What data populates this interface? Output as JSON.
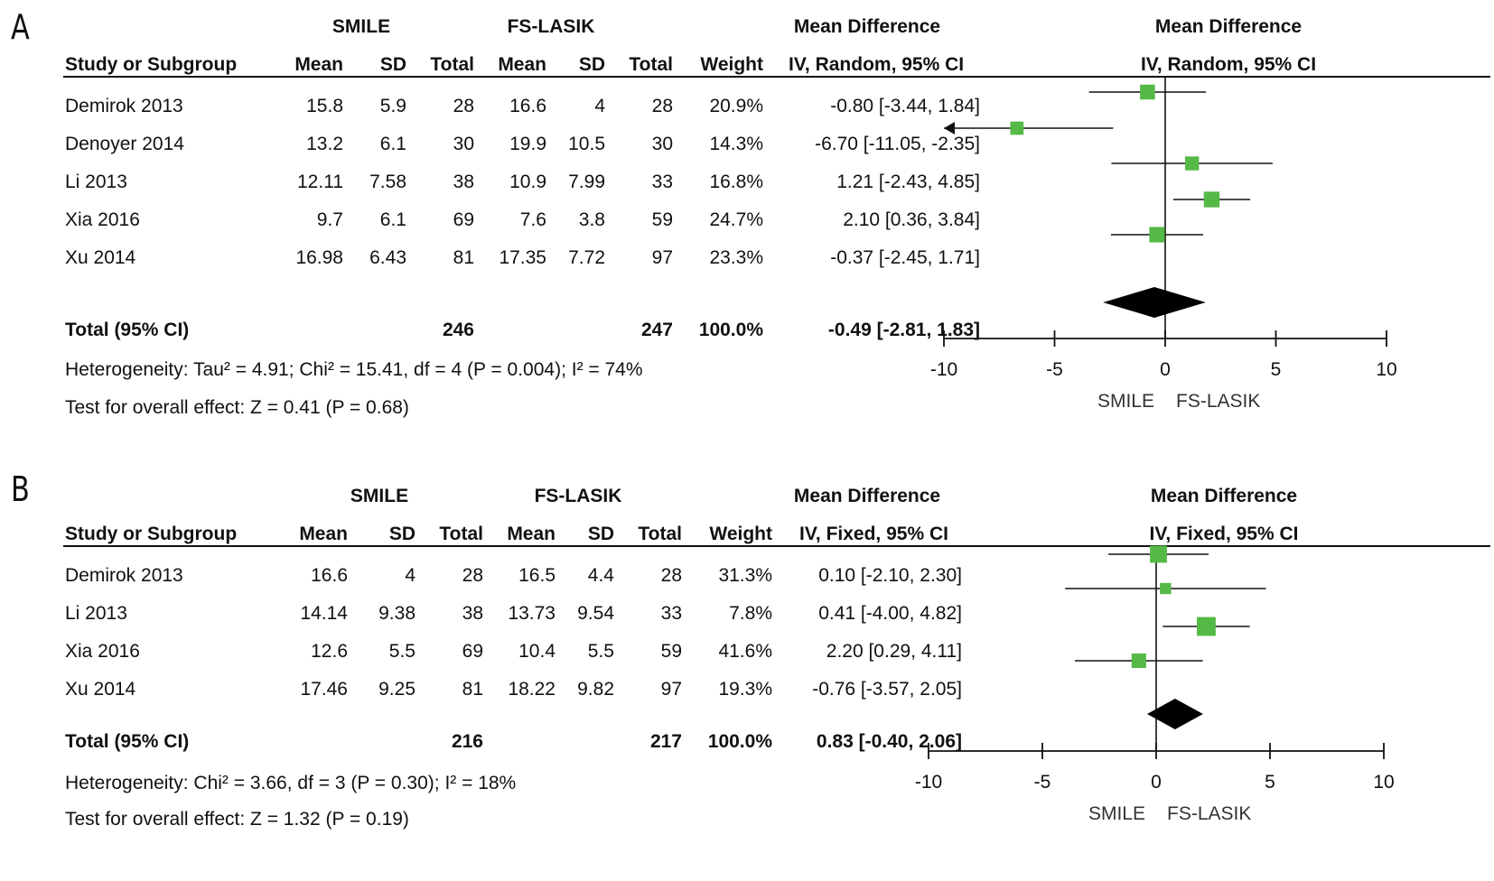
{
  "chart_data": [
    {
      "type": "forest",
      "panel_label": "A",
      "group1": "SMILE",
      "group2": "FS-LASIK",
      "effect_header": "Mean Difference",
      "columns": [
        "Study or Subgroup",
        "Mean",
        "SD",
        "Total",
        "Mean",
        "SD",
        "Total",
        "Weight"
      ],
      "method": "IV, Random, 95% CI",
      "studies": [
        {
          "name": "Demirok 2013",
          "m1": "15.8",
          "sd1": "5.9",
          "n1": "28",
          "m2": "16.6",
          "sd2": "4",
          "n2": "28",
          "weight": "20.9%",
          "ci_text": "-0.80 [-3.44, 1.84]",
          "md": -0.8,
          "lo": -3.44,
          "hi": 1.84
        },
        {
          "name": "Denoyer 2014",
          "m1": "13.2",
          "sd1": "6.1",
          "n1": "30",
          "m2": "19.9",
          "sd2": "10.5",
          "n2": "30",
          "weight": "14.3%",
          "ci_text": "-6.70 [-11.05, -2.35]",
          "md": -6.7,
          "lo": -11.05,
          "hi": -2.35
        },
        {
          "name": "Li 2013",
          "m1": "12.11",
          "sd1": "7.58",
          "n1": "38",
          "m2": "10.9",
          "sd2": "7.99",
          "n2": "33",
          "weight": "16.8%",
          "ci_text": "1.21 [-2.43, 4.85]",
          "md": 1.21,
          "lo": -2.43,
          "hi": 4.85
        },
        {
          "name": "Xia 2016",
          "m1": "9.7",
          "sd1": "6.1",
          "n1": "69",
          "m2": "7.6",
          "sd2": "3.8",
          "n2": "59",
          "weight": "24.7%",
          "ci_text": "2.10 [0.36, 3.84]",
          "md": 2.1,
          "lo": 0.36,
          "hi": 3.84
        },
        {
          "name": "Xu 2014",
          "m1": "16.98",
          "sd1": "6.43",
          "n1": "81",
          "m2": "17.35",
          "sd2": "7.72",
          "n2": "97",
          "weight": "23.3%",
          "ci_text": "-0.37 [-2.45, 1.71]",
          "md": -0.37,
          "lo": -2.45,
          "hi": 1.71
        }
      ],
      "total": {
        "label": "Total (95% CI)",
        "n1": "246",
        "n2": "247",
        "weight": "100.0%",
        "ci_text": "-0.49 [-2.81, 1.83]",
        "md": -0.49,
        "lo": -2.81,
        "hi": 1.83
      },
      "heterogeneity": "Heterogeneity: Tau² = 4.91; Chi² = 15.41, df = 4 (P = 0.004); I² = 74%",
      "overall": "Test for overall effect: Z = 0.41 (P = 0.68)",
      "x_ticks": [
        -10,
        -5,
        0,
        5,
        10
      ],
      "xlim": [
        -10,
        10
      ],
      "favours_left": "SMILE",
      "favours_right": "FS-LASIK",
      "marker_color": "#55b947"
    },
    {
      "type": "forest",
      "panel_label": "B",
      "group1": "SMILE",
      "group2": "FS-LASIK",
      "effect_header": "Mean Difference",
      "columns": [
        "Study or Subgroup",
        "Mean",
        "SD",
        "Total",
        "Mean",
        "SD",
        "Total",
        "Weight"
      ],
      "method": "IV, Fixed, 95% CI",
      "studies": [
        {
          "name": "Demirok 2013",
          "m1": "16.6",
          "sd1": "4",
          "n1": "28",
          "m2": "16.5",
          "sd2": "4.4",
          "n2": "28",
          "weight": "31.3%",
          "ci_text": "0.10 [-2.10, 2.30]",
          "md": 0.1,
          "lo": -2.1,
          "hi": 2.3
        },
        {
          "name": "Li 2013",
          "m1": "14.14",
          "sd1": "9.38",
          "n1": "38",
          "m2": "13.73",
          "sd2": "9.54",
          "n2": "33",
          "weight": "7.8%",
          "ci_text": "0.41 [-4.00, 4.82]",
          "md": 0.41,
          "lo": -4.0,
          "hi": 4.82
        },
        {
          "name": "Xia 2016",
          "m1": "12.6",
          "sd1": "5.5",
          "n1": "69",
          "m2": "10.4",
          "sd2": "5.5",
          "n2": "59",
          "weight": "41.6%",
          "ci_text": "2.20 [0.29, 4.11]",
          "md": 2.2,
          "lo": 0.29,
          "hi": 4.11
        },
        {
          "name": "Xu 2014",
          "m1": "17.46",
          "sd1": "9.25",
          "n1": "81",
          "m2": "18.22",
          "sd2": "9.82",
          "n2": "97",
          "weight": "19.3%",
          "ci_text": "-0.76 [-3.57, 2.05]",
          "md": -0.76,
          "lo": -3.57,
          "hi": 2.05
        }
      ],
      "total": {
        "label": "Total (95% CI)",
        "n1": "216",
        "n2": "217",
        "weight": "100.0%",
        "ci_text": "0.83 [-0.40, 2.06]",
        "md": 0.83,
        "lo": -0.4,
        "hi": 2.06
      },
      "heterogeneity": "Heterogeneity: Chi² = 3.66, df = 3 (P = 0.30); I² = 18%",
      "overall": "Test for overall effect: Z = 1.32 (P = 0.19)",
      "x_ticks": [
        -10,
        -5,
        0,
        5,
        10
      ],
      "xlim": [
        -10,
        10
      ],
      "favours_left": "SMILE",
      "favours_right": "FS-LASIK",
      "marker_color": "#55b947"
    }
  ]
}
